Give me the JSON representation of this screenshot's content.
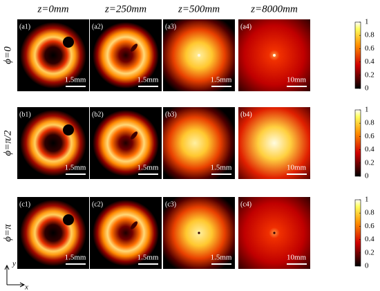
{
  "columns": [
    "z=0mm",
    "z=250mm",
    "z=500mm",
    "z=8000mm"
  ],
  "rows": [
    {
      "label": "ϕ=0",
      "panels": [
        {
          "label": "(a1)",
          "scale": "1.5mm"
        },
        {
          "label": "(a2)",
          "scale": "1.5mm"
        },
        {
          "label": "(a3)",
          "scale": "1.5mm"
        },
        {
          "label": "(a4)",
          "scale": "10mm"
        }
      ]
    },
    {
      "label": "ϕ=π/2",
      "panels": [
        {
          "label": "(b1)",
          "scale": "1.5mm"
        },
        {
          "label": "(b2)",
          "scale": "1.5mm"
        },
        {
          "label": "(b3)",
          "scale": "1.5mm"
        },
        {
          "label": "(b4)",
          "scale": "10mm"
        }
      ]
    },
    {
      "label": "ϕ=π",
      "panels": [
        {
          "label": "(c1)",
          "scale": "1.5mm"
        },
        {
          "label": "(c2)",
          "scale": "1.5mm"
        },
        {
          "label": "(c3)",
          "scale": "1.5mm"
        },
        {
          "label": "(c4)",
          "scale": "10mm"
        }
      ]
    }
  ],
  "colorbars": [
    {
      "ticks": [
        0,
        0.2,
        0.4,
        0.6,
        0.8,
        1
      ]
    },
    {
      "ticks": [
        0,
        0.2,
        0.4,
        0.6,
        0.8,
        1
      ]
    },
    {
      "ticks": [
        0,
        0.2,
        0.4,
        0.6,
        0.8,
        1
      ]
    }
  ],
  "axes": {
    "x": "x",
    "y": "y"
  }
}
